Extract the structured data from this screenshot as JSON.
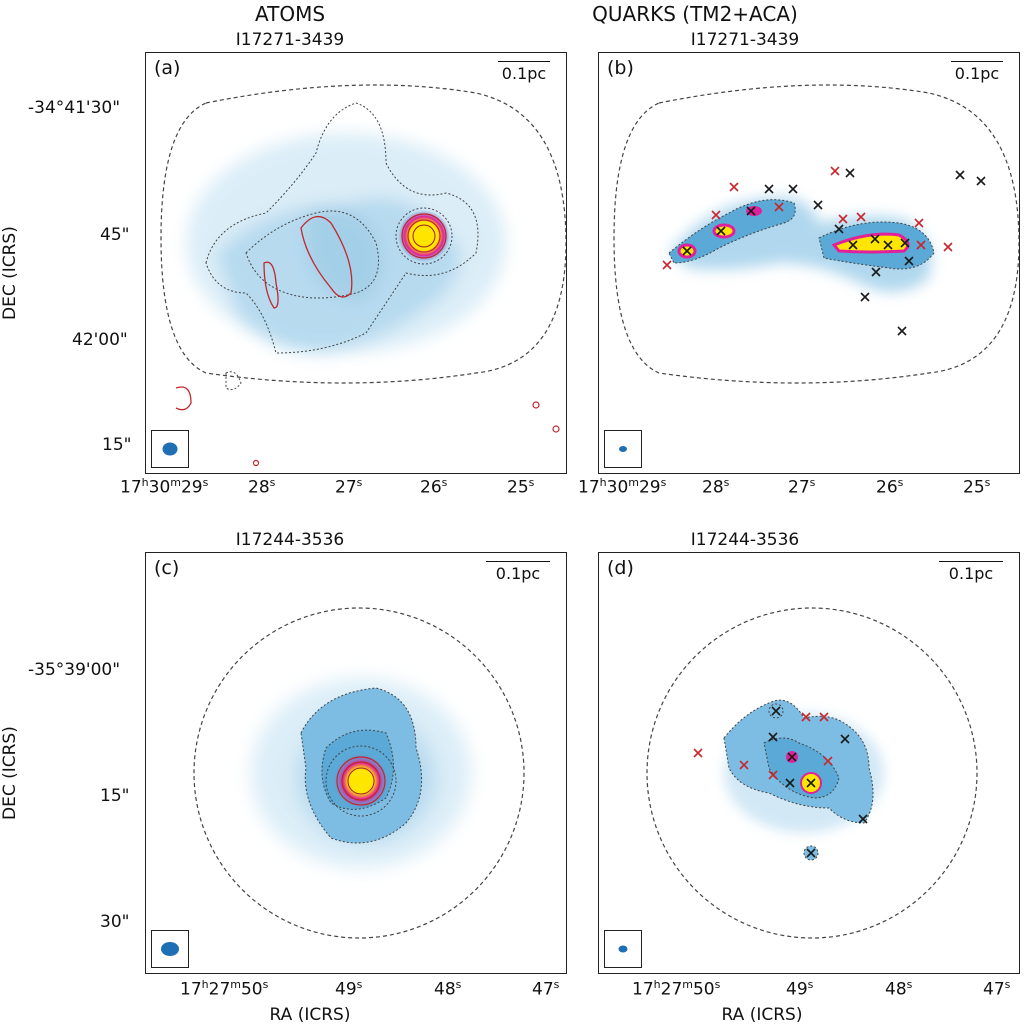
{
  "columns": {
    "left": "ATOMS",
    "right": "QUARKS (TM2+ACA)"
  },
  "panels": [
    {
      "label": "(a)",
      "source": "I17271-3439",
      "scalebar": "0.1pc"
    },
    {
      "label": "(b)",
      "source": "I17271-3439",
      "scalebar": "0.1pc"
    },
    {
      "label": "(c)",
      "source": "I17244-3536",
      "scalebar": "0.1pc"
    },
    {
      "label": "(d)",
      "source": "I17244-3536",
      "scalebar": "0.1pc"
    }
  ],
  "top_row": {
    "dec_ticks": [
      "-34°41'30\"",
      "45\"",
      "42'00\"",
      "15\""
    ],
    "ra_ticks_first": {
      "h": "17",
      "m": "30",
      "s": "29"
    },
    "ra_ticks": [
      "28s",
      "27s",
      "26s",
      "25s"
    ]
  },
  "bottom_row": {
    "dec_ticks": [
      "-35°39'00\"",
      "15\"",
      "30\""
    ],
    "ra_ticks_first": {
      "h": "17",
      "m": "27",
      "s": "50"
    },
    "ra_ticks": [
      "49s",
      "48s",
      "47s"
    ]
  },
  "axes": {
    "ylabel": "DEC (ICRS)",
    "xlabel": "RA (ICRS)"
  },
  "colors": {
    "dust_blue": "#5aa9d6",
    "peak": "#ffe600",
    "magenta": "#e0219b",
    "red_contour": "#c0282d",
    "cross_black": "#1a1a1a",
    "cross_red": "#c8282d",
    "beam": "#1f6fb5"
  }
}
